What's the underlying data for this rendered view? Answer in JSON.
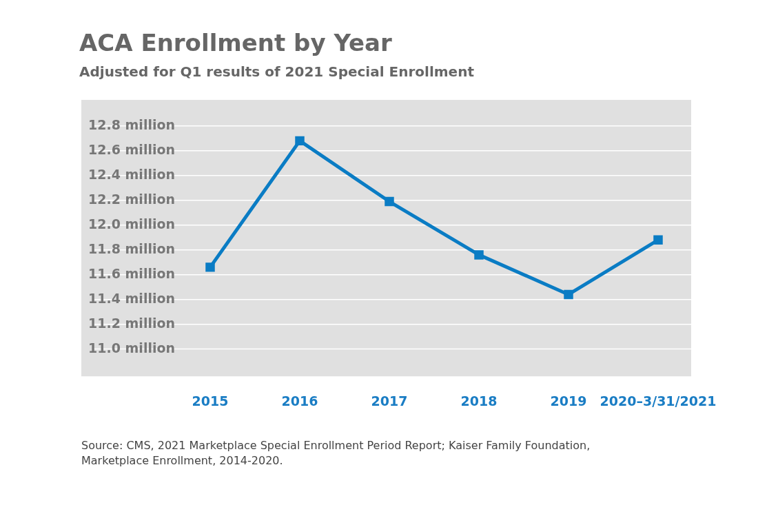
{
  "chart_data": {
    "type": "line",
    "title": "ACA Enrollment by Year",
    "subtitle": "Adjusted for Q1 results of 2021 Special Enrollment",
    "categories": [
      "2015",
      "2016",
      "2017",
      "2018",
      "2019",
      "2020–3/31/2021"
    ],
    "series": [
      {
        "color": "#0a7cc4",
        "values": [
          11.66,
          12.68,
          12.19,
          11.76,
          11.44,
          11.88
        ]
      }
    ],
    "ylim": [
      10.78,
      13.01
    ],
    "yticks": [
      {
        "value": 11.0,
        "label": "11.0 million"
      },
      {
        "value": 11.2,
        "label": "11.2 million"
      },
      {
        "value": 11.4,
        "label": "11.4 million"
      },
      {
        "value": 11.6,
        "label": "11.6 million"
      },
      {
        "value": 11.8,
        "label": "11.8 million"
      },
      {
        "value": 12.0,
        "label": "12.0 million"
      },
      {
        "value": 12.2,
        "label": "12.2 million"
      },
      {
        "value": 12.4,
        "label": "12.4 million"
      },
      {
        "value": 12.6,
        "label": "12.6 million"
      },
      {
        "value": 12.8,
        "label": "12.8 million"
      }
    ],
    "grid": "y",
    "legend": false,
    "marker": "square",
    "line_style": "solid",
    "annotations": [
      "Source: CMS, 2021 Marketplace Special Enrollment Period Report; Kaiser Family Foundation, Marketplace Enrollment, 2014-2020."
    ]
  }
}
